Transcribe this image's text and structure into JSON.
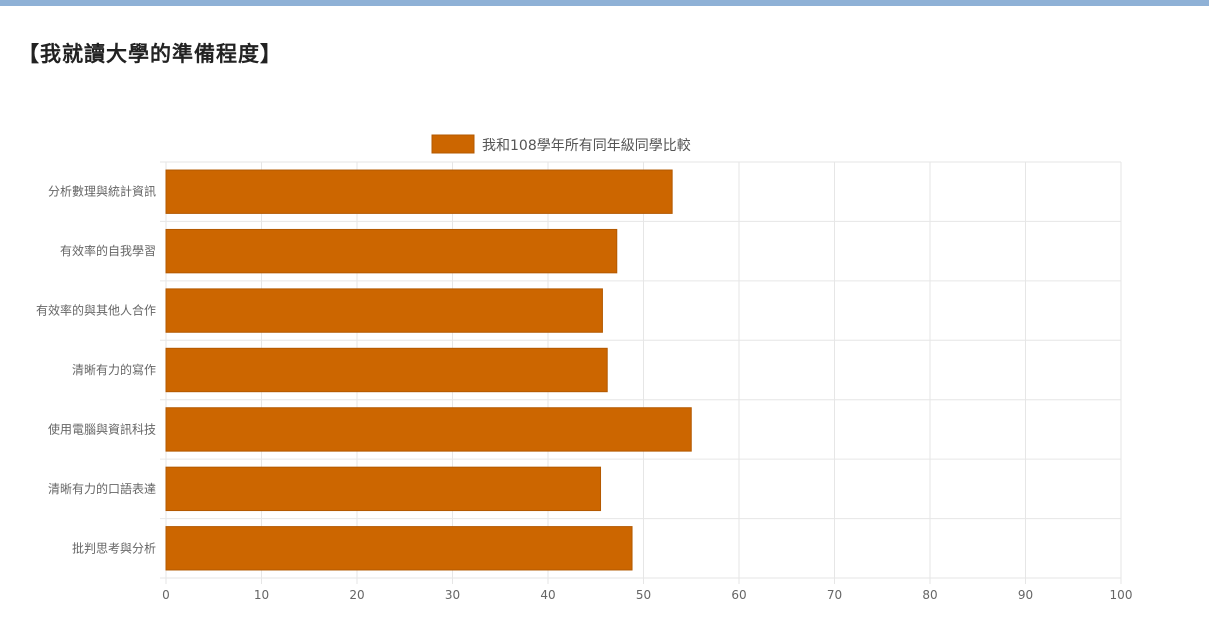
{
  "page": {
    "title": "【我就讀大學的準備程度】"
  },
  "colors": {
    "accent_bar": "#8fb1d6",
    "series_fill": "#cc6600",
    "series_stroke": "#b35900",
    "grid": "#e6e6e6"
  },
  "chart_data": {
    "type": "bar",
    "orientation": "horizontal",
    "categories": [
      "分析數理與統計資訊",
      "有效率的自我學習",
      "有效率的與其他人合作",
      "清晰有力的寫作",
      "使用電腦與資訊科技",
      "清晰有力的口語表達",
      "批判思考與分析"
    ],
    "series": [
      {
        "name": "我和108學年所有同年級同學比較",
        "values": [
          53,
          47.2,
          45.7,
          46.2,
          55,
          45.5,
          48.8
        ]
      }
    ],
    "xlim": [
      0,
      100
    ],
    "xticks": [
      0,
      10,
      20,
      30,
      40,
      50,
      60,
      70,
      80,
      90,
      100
    ],
    "grid": true,
    "legend_position": "top"
  }
}
